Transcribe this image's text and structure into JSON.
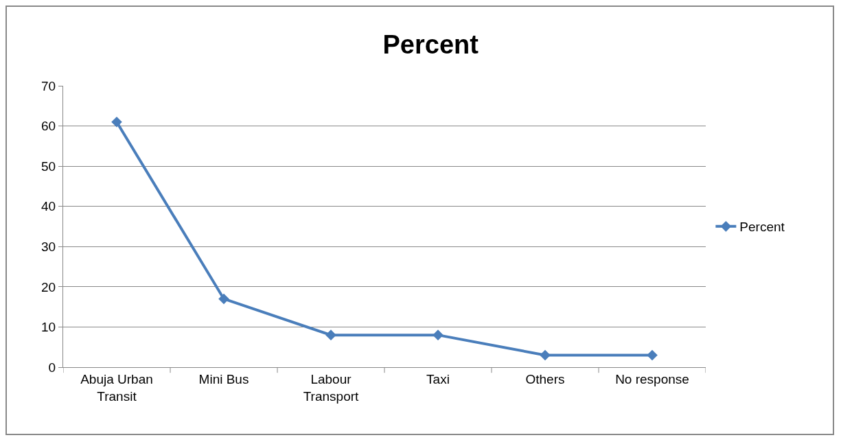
{
  "chart_data": {
    "type": "line",
    "title": "Percent",
    "categories": [
      "Abuja Urban Transit",
      "Mini Bus",
      "Labour Transport",
      "Taxi",
      "Others",
      "No response"
    ],
    "series": [
      {
        "name": "Percent",
        "color": "#4a7ebb",
        "values": [
          61,
          17,
          8,
          8,
          3,
          3
        ]
      }
    ],
    "ylim": [
      0,
      70
    ],
    "yticks": [
      0,
      10,
      20,
      30,
      40,
      50,
      60,
      70
    ],
    "grid": "y",
    "legend": "right",
    "marker": "diamond",
    "line_style": "solid"
  }
}
